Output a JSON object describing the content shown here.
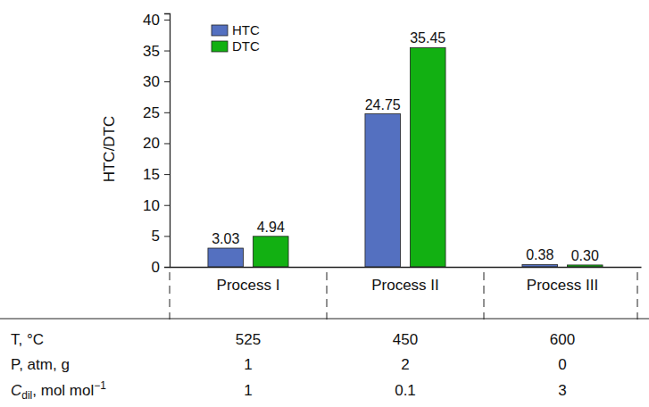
{
  "chart_data": {
    "type": "bar",
    "y_label": "HTC/DTC",
    "categories": [
      "Process I",
      "Process II",
      "Process III"
    ],
    "series": [
      {
        "name": "HTC",
        "color": "#5470c0",
        "values": [
          3.03,
          24.75,
          0.38
        ],
        "value_labels": [
          "3.03",
          "24.75",
          "0.38"
        ]
      },
      {
        "name": "DTC",
        "color": "#12b012",
        "values": [
          4.94,
          35.45,
          0.3
        ],
        "value_labels": [
          "4.94",
          "35.45",
          "0.30"
        ]
      }
    ],
    "ylim": [
      0,
      41
    ],
    "yticks": [
      0,
      5,
      10,
      15,
      20,
      25,
      30,
      35,
      40
    ],
    "grid": false,
    "legend": "upper left",
    "data_labels": true,
    "table": {
      "rows": [
        {
          "label": "T, °C",
          "values": [
            525,
            450,
            600
          ]
        },
        {
          "label": "P, atm, g",
          "values": [
            1,
            2,
            0
          ]
        },
        {
          "label": "C",
          "label_sub": "dil",
          "label_rest": ", mol mol",
          "label_sup": "−1",
          "values": [
            1,
            0.1,
            3
          ]
        }
      ]
    }
  }
}
